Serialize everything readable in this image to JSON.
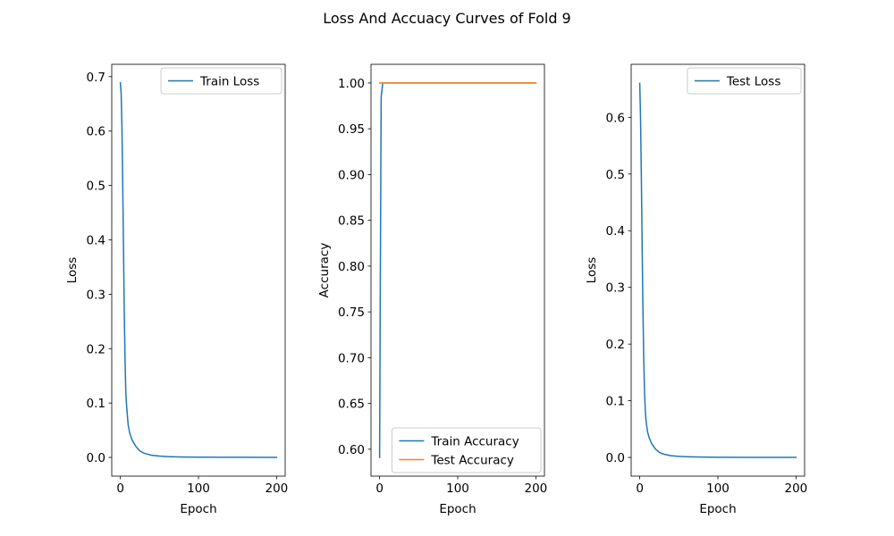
{
  "figure": {
    "title": "Loss And Accuacy Curves of Fold 9"
  },
  "chart_data": [
    {
      "type": "line",
      "xlabel": "Epoch",
      "ylabel": "Loss",
      "xlim": [
        -11,
        211
      ],
      "ylim": [
        -0.0344,
        0.7227
      ],
      "xticks": [
        0,
        100,
        200
      ],
      "xtick_labels": [
        "0",
        "100",
        "200"
      ],
      "yticks": [
        0.0,
        0.1,
        0.2,
        0.3,
        0.4,
        0.5,
        0.6,
        0.7
      ],
      "ytick_labels": [
        "0.0",
        "0.1",
        "0.2",
        "0.3",
        "0.4",
        "0.5",
        "0.6",
        "0.7"
      ],
      "legend": {
        "position": "upper right"
      },
      "series": [
        {
          "name": "Train Loss",
          "color": "#1f77b4",
          "x": [
            0,
            1,
            2,
            3,
            4,
            5,
            6,
            7,
            8,
            10,
            12,
            15,
            20,
            25,
            30,
            40,
            50,
            60,
            80,
            100,
            150,
            200
          ],
          "y": [
            0.689,
            0.67,
            0.61,
            0.51,
            0.39,
            0.27,
            0.18,
            0.12,
            0.095,
            0.06,
            0.045,
            0.032,
            0.02,
            0.012,
            0.008,
            0.004,
            0.0025,
            0.0015,
            0.0008,
            0.0005,
            0.0002,
            0.0001
          ]
        }
      ]
    },
    {
      "type": "line",
      "xlabel": "Epoch",
      "ylabel": "Accuracy",
      "xlim": [
        -11,
        211
      ],
      "ylim": [
        0.5706,
        1.0204
      ],
      "xticks": [
        0,
        100,
        200
      ],
      "xtick_labels": [
        "0",
        "100",
        "200"
      ],
      "yticks": [
        0.6,
        0.65,
        0.7,
        0.75,
        0.8,
        0.85,
        0.9,
        0.95,
        1.0
      ],
      "ytick_labels": [
        "0.60",
        "0.65",
        "0.70",
        "0.75",
        "0.80",
        "0.85",
        "0.90",
        "0.95",
        "1.00"
      ],
      "legend": {
        "position": "lower right"
      },
      "series": [
        {
          "name": "Train Accuracy",
          "color": "#1f77b4",
          "x": [
            0,
            1,
            2,
            3,
            4,
            5,
            200
          ],
          "y": [
            0.591,
            0.8,
            0.985,
            0.992,
            1.0,
            1.0,
            1.0
          ]
        },
        {
          "name": "Test Accuracy",
          "color": "#ff7f0e",
          "x": [
            0,
            200
          ],
          "y": [
            1.0,
            1.0
          ]
        }
      ]
    },
    {
      "type": "line",
      "xlabel": "Epoch",
      "ylabel": "Loss",
      "xlim": [
        -11,
        211
      ],
      "ylim": [
        -0.033,
        0.6935
      ],
      "xticks": [
        0,
        100,
        200
      ],
      "xtick_labels": [
        "0",
        "100",
        "200"
      ],
      "yticks": [
        0.0,
        0.1,
        0.2,
        0.3,
        0.4,
        0.5,
        0.6
      ],
      "ytick_labels": [
        "0.0",
        "0.1",
        "0.2",
        "0.3",
        "0.4",
        "0.5",
        "0.6"
      ],
      "legend": {
        "position": "upper right"
      },
      "series": [
        {
          "name": "Test Loss",
          "color": "#1f77b4",
          "x": [
            0,
            1,
            2,
            3,
            4,
            5,
            6,
            7,
            8,
            10,
            12,
            15,
            20,
            25,
            30,
            40,
            50,
            60,
            80,
            100,
            150,
            200
          ],
          "y": [
            0.66,
            0.6,
            0.5,
            0.38,
            0.27,
            0.18,
            0.12,
            0.085,
            0.065,
            0.045,
            0.035,
            0.025,
            0.015,
            0.009,
            0.006,
            0.003,
            0.0018,
            0.0012,
            0.0006,
            0.0003,
            0.0001,
            5e-05
          ]
        }
      ]
    }
  ]
}
